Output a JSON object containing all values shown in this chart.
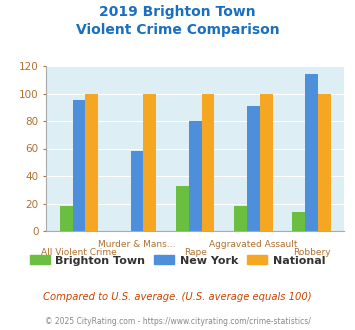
{
  "title_line1": "2019 Brighton Town",
  "title_line2": "Violent Crime Comparison",
  "categories": [
    "All Violent Crime",
    "Murder & Mans...",
    "Rape",
    "Aggravated Assault",
    "Robbery"
  ],
  "brighton_values": [
    18,
    0,
    33,
    18,
    14
  ],
  "newyork_values": [
    95,
    58,
    80,
    91,
    114
  ],
  "national_values": [
    100,
    100,
    100,
    100,
    100
  ],
  "brighton_color": "#6abf40",
  "newyork_color": "#4d8fdb",
  "national_color": "#f5a623",
  "ylim": [
    0,
    120
  ],
  "yticks": [
    0,
    20,
    40,
    60,
    80,
    100,
    120
  ],
  "bg_color": "#ddeef5",
  "title_color": "#1a6fbf",
  "axis_label_color": "#b07030",
  "tick_color": "#b07030",
  "footnote": "Compared to U.S. average. (U.S. average equals 100)",
  "copyright": "© 2025 CityRating.com - https://www.cityrating.com/crime-statistics/",
  "footnote_color": "#cc4400",
  "copyright_color": "#888888",
  "legend_labels": [
    "Brighton Town",
    "New York",
    "National"
  ],
  "bar_width": 0.22
}
